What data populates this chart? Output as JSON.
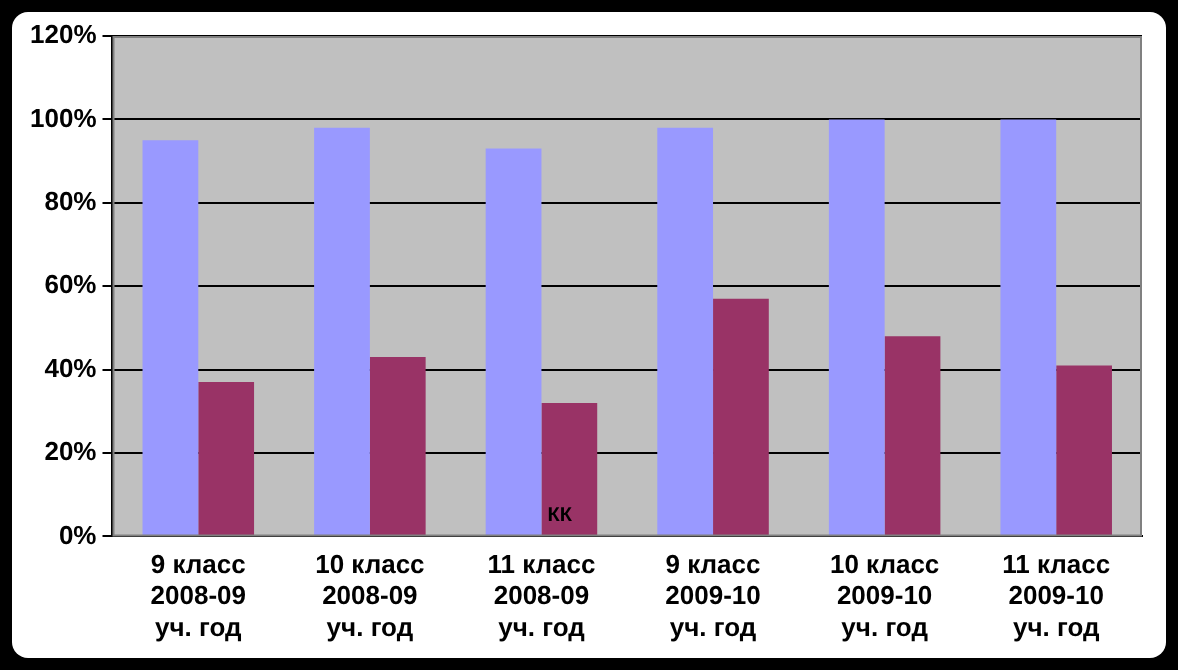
{
  "chart_data": {
    "type": "bar",
    "categories": [
      "9 класс\n2008-09\nуч. год",
      "10 класс\n2008-09\nуч. год",
      "11 класс\n2008-09\nуч. год",
      "9 класс\n2009-10\nуч. год",
      "10 класс\n2009-10\nуч. год",
      "11 класс\n2009-10\nуч. год"
    ],
    "series": [
      {
        "color": "#9999ff",
        "values": [
          95,
          98,
          93,
          98,
          100,
          100
        ]
      },
      {
        "color": "#993366",
        "values": [
          37,
          43,
          32,
          57,
          48,
          41
        ]
      }
    ],
    "ylim": [
      0,
      120
    ],
    "yticks": [
      {
        "value": 0,
        "label": "0%"
      },
      {
        "value": 20,
        "label": "20%"
      },
      {
        "value": 40,
        "label": "40%"
      },
      {
        "value": 60,
        "label": "60%"
      },
      {
        "value": 80,
        "label": "80%"
      },
      {
        "value": 100,
        "label": "100%"
      },
      {
        "value": 120,
        "label": "120%"
      }
    ],
    "grid": "y",
    "legend": false,
    "annotations": [
      {
        "text": "КК",
        "x": "11 класс\n2008-09\nуч. год",
        "y": 5
      }
    ]
  }
}
